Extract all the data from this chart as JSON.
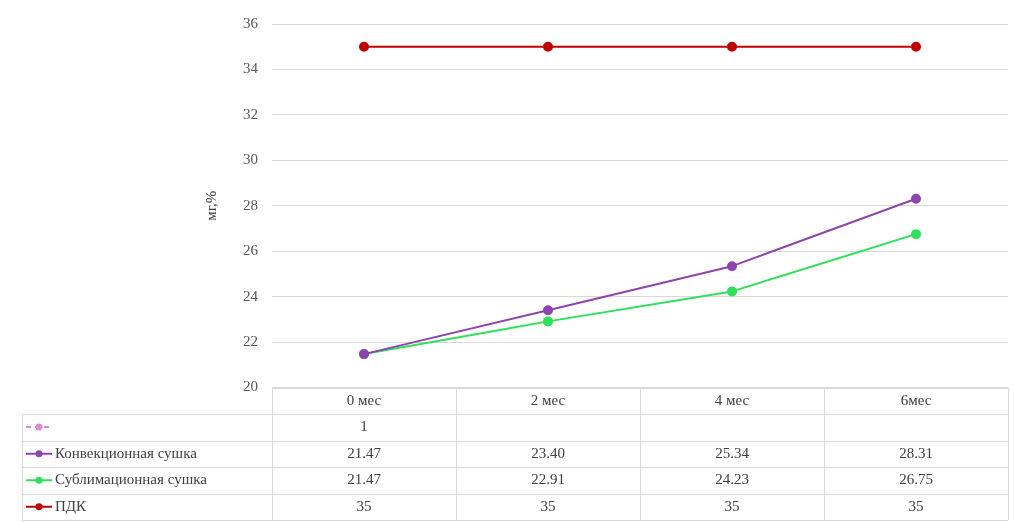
{
  "chart_data": {
    "type": "line",
    "ylabel": "мг,%",
    "categories": [
      "0 мес",
      "2 мес",
      "4 мес",
      "6мес"
    ],
    "ylim": [
      20,
      36
    ],
    "yticks": [
      20,
      22,
      24,
      26,
      28,
      30,
      32,
      34,
      36
    ],
    "grid": "y",
    "legend": "bottom",
    "marker": "circle",
    "series": [
      {
        "color": "#d98bd9",
        "line_style": "dashed",
        "values": [
          null,
          null,
          null,
          null
        ],
        "value_labels": [
          "1",
          null,
          null,
          null
        ]
      },
      {
        "name": "Конвекционная сушка",
        "color": "#8e44ad",
        "values": [
          21.47,
          23.4,
          25.34,
          28.31
        ],
        "value_labels": [
          "21.47",
          "23.40",
          "25.34",
          "28.31"
        ]
      },
      {
        "name": "Сублимационная сушка",
        "color": "#2ee05a",
        "values": [
          21.47,
          22.91,
          24.23,
          26.75
        ],
        "value_labels": [
          "21.47",
          "22.91",
          "24.23",
          "26.75"
        ]
      },
      {
        "name": "ПДК",
        "color": "#c00000",
        "values": [
          35,
          35,
          35,
          35
        ],
        "value_labels": [
          "35",
          "35",
          "35",
          "35"
        ]
      }
    ]
  }
}
